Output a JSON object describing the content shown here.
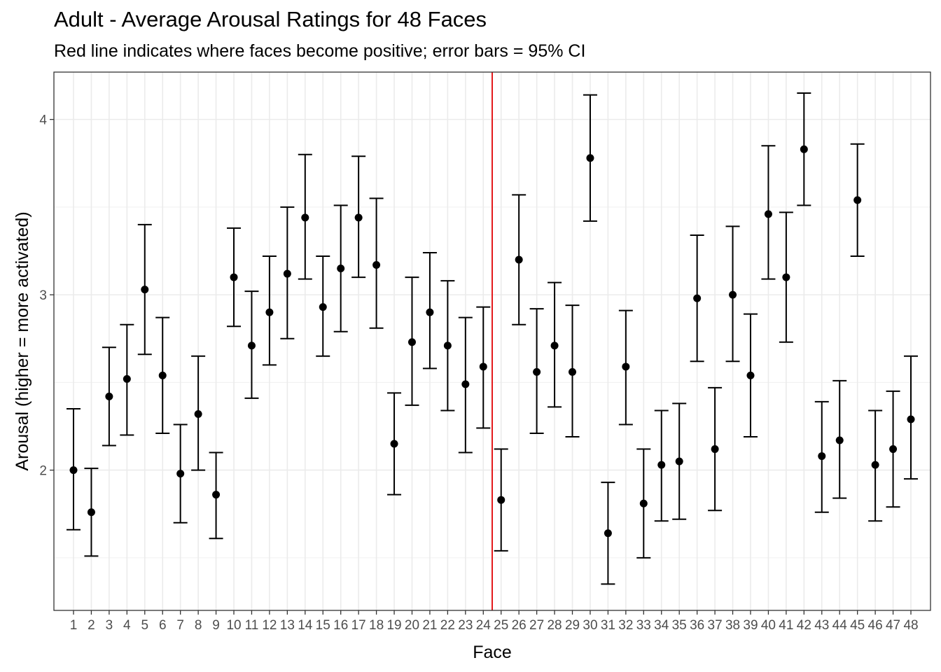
{
  "chart_data": {
    "type": "scatter",
    "title": "Adult - Average Arousal Ratings for 48 Faces",
    "subtitle": "Red line indicates where faces become positive; error bars = 95% CI",
    "xlabel": "Face",
    "ylabel": "Arousal (higher = more activated)",
    "categories": [
      "1",
      "2",
      "3",
      "4",
      "5",
      "6",
      "7",
      "8",
      "9",
      "10",
      "11",
      "12",
      "13",
      "14",
      "15",
      "16",
      "17",
      "18",
      "19",
      "20",
      "21",
      "22",
      "23",
      "24",
      "25",
      "26",
      "27",
      "28",
      "29",
      "30",
      "31",
      "32",
      "33",
      "34",
      "35",
      "36",
      "37",
      "38",
      "39",
      "40",
      "41",
      "42",
      "43",
      "44",
      "45",
      "46",
      "47",
      "48"
    ],
    "y_ticks": [
      2,
      3,
      4
    ],
    "ylim": [
      1.2,
      4.27
    ],
    "grid": true,
    "reference_line": {
      "x": 24.5,
      "color": "#e41a1c"
    },
    "series": [
      {
        "mean": [
          2.0,
          1.76,
          2.42,
          2.52,
          3.03,
          2.54,
          1.98,
          2.32,
          1.86,
          3.1,
          2.71,
          2.9,
          3.12,
          3.44,
          2.93,
          3.15,
          3.44,
          3.17,
          2.15,
          2.73,
          2.9,
          2.71,
          2.49,
          2.59,
          1.83,
          3.2,
          2.56,
          2.71,
          2.56,
          3.78,
          1.64,
          2.59,
          1.81,
          2.03,
          2.05,
          2.98,
          2.12,
          3.0,
          2.54,
          3.46,
          3.1,
          3.83,
          2.08,
          2.17,
          3.54,
          2.03,
          2.12,
          2.29
        ],
        "lower": [
          1.66,
          1.51,
          2.14,
          2.2,
          2.66,
          2.21,
          1.7,
          2.0,
          1.61,
          2.82,
          2.41,
          2.6,
          2.75,
          3.09,
          2.65,
          2.79,
          3.1,
          2.81,
          1.86,
          2.37,
          2.58,
          2.34,
          2.1,
          2.24,
          1.54,
          2.83,
          2.21,
          2.36,
          2.19,
          3.42,
          1.35,
          2.26,
          1.5,
          1.71,
          1.72,
          2.62,
          1.77,
          2.62,
          2.19,
          3.09,
          2.73,
          3.51,
          1.76,
          1.84,
          3.22,
          1.71,
          1.79,
          1.95
        ],
        "upper": [
          2.35,
          2.01,
          2.7,
          2.83,
          3.4,
          2.87,
          2.26,
          2.65,
          2.1,
          3.38,
          3.02,
          3.22,
          3.5,
          3.8,
          3.22,
          3.51,
          3.79,
          3.55,
          2.44,
          3.1,
          3.24,
          3.08,
          2.87,
          2.93,
          2.12,
          3.57,
          2.92,
          3.07,
          2.94,
          4.14,
          1.93,
          2.91,
          2.12,
          2.34,
          2.38,
          3.34,
          2.47,
          3.39,
          2.89,
          3.85,
          3.47,
          4.15,
          2.39,
          2.51,
          3.86,
          2.34,
          2.45,
          2.65
        ]
      }
    ]
  }
}
